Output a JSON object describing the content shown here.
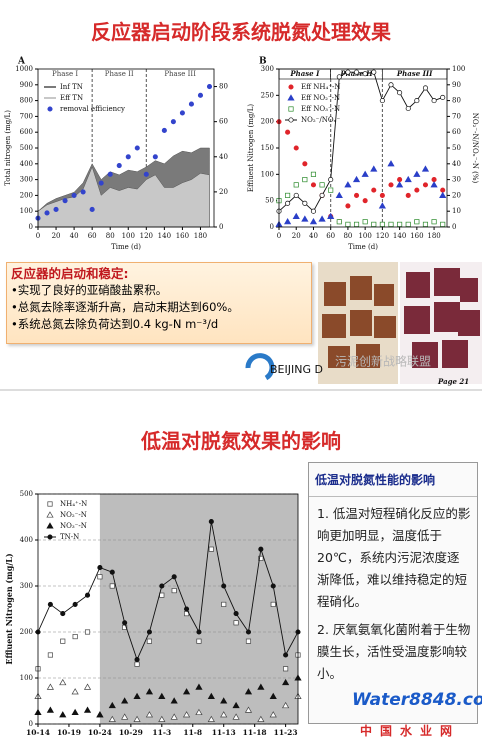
{
  "slides": [
    {
      "title": "反应器启动阶段系统脱氮处理效果",
      "box": {
        "heading": "反应器的启动和稳定:",
        "bullets": [
          "•实现了良好的亚硝酸盐累积。",
          "•总氮去除率逐渐升高，启动末期达到60%。",
          "•系统总氮去除负荷达到0.4 kg-N m⁻³/d"
        ]
      },
      "logo": "BEIJING D",
      "watermark": "污泥创新战略联盟",
      "page": "Page 21"
    },
    {
      "title": "低温对脱氮效果的影响",
      "box": {
        "heading": "低温对脱氮性能的影响",
        "items": [
          "1. 低温对短程硝化反应的影响更加明显，温度低于20℃，系统内污泥浓度逐渐降低，难以维持稳定的短程硝化。",
          "2. 厌氧氨氧化菌附着于生物膜生长，活性受温度影响较小。"
        ]
      },
      "watermark": {
        "brand": "Water8848.com",
        "sub": "中国水业网"
      }
    }
  ],
  "chart_data": [
    {
      "type": "line",
      "panel": "A",
      "xlabel": "Time (d)",
      "ylabel": "Total nitrogen (mg/L)",
      "legend": "upper left",
      "x": [
        0,
        10,
        20,
        30,
        40,
        50,
        60,
        70,
        80,
        90,
        100,
        110,
        120,
        130,
        140,
        150,
        160,
        170,
        180,
        190
      ],
      "xlim": [
        0,
        195
      ],
      "xticks": [
        0,
        20,
        40,
        60,
        80,
        100,
        120,
        140,
        160,
        180
      ],
      "ylim": [
        0,
        1000
      ],
      "yticks": [
        0,
        100,
        200,
        300,
        400,
        500,
        600,
        700,
        800,
        900,
        1000
      ],
      "y2lim": [
        0,
        90
      ],
      "y2ticks": [
        0,
        20,
        40,
        60,
        80
      ],
      "phases": [
        {
          "name": "Phase I",
          "start": 0,
          "end": 60
        },
        {
          "name": "Phase II",
          "start": 60,
          "end": 120
        },
        {
          "name": "Phase III",
          "start": 120,
          "end": 195
        }
      ],
      "series": [
        {
          "name": "Inf TN",
          "color": "#7a7a7a",
          "mark": "area",
          "values": [
            100,
            150,
            180,
            200,
            220,
            280,
            400,
            300,
            350,
            330,
            360,
            350,
            380,
            420,
            400,
            450,
            480,
            470,
            500,
            500
          ]
        },
        {
          "name": "Eff TN",
          "color": "#c8c8c8",
          "mark": "area",
          "values": [
            100,
            140,
            160,
            180,
            190,
            240,
            380,
            200,
            250,
            230,
            250,
            240,
            300,
            330,
            250,
            250,
            280,
            300,
            340,
            330
          ]
        },
        {
          "name": "removal efficiency",
          "color": "#3344cc",
          "mark": "circle",
          "axis": "y2",
          "values": [
            5,
            8,
            10,
            15,
            18,
            20,
            10,
            25,
            30,
            35,
            40,
            45,
            30,
            40,
            55,
            60,
            65,
            70,
            75,
            80
          ]
        }
      ]
    },
    {
      "type": "line",
      "panel": "B",
      "xlabel": "Time (d)",
      "ylabel": "Effluent Nitrogen (mg/L)",
      "y2label": "NO₂⁻-N/NOₓ⁻-N (%)",
      "legend": "upper left",
      "x": [
        0,
        10,
        20,
        30,
        40,
        50,
        60,
        70,
        80,
        90,
        100,
        110,
        120,
        130,
        140,
        150,
        160,
        170,
        180,
        190
      ],
      "xlim": [
        0,
        195
      ],
      "xticks": [
        0,
        20,
        40,
        60,
        80,
        100,
        120,
        140,
        160,
        180
      ],
      "ylim": [
        0,
        300
      ],
      "yticks": [
        0,
        50,
        100,
        150,
        200,
        250,
        300
      ],
      "y2lim": [
        0,
        100
      ],
      "y2ticks": [
        0,
        10,
        20,
        30,
        40,
        50,
        60,
        70,
        80,
        90,
        100
      ],
      "phases": [
        {
          "name": "Phase I",
          "start": 0,
          "end": 60
        },
        {
          "name": "Phase II",
          "start": 60,
          "end": 120
        },
        {
          "name": "Phase III",
          "start": 120,
          "end": 195
        }
      ],
      "series": [
        {
          "name": "Eff NH₄⁺-N",
          "color": "#e0242a",
          "mark": "circle",
          "values": [
            200,
            180,
            150,
            120,
            80,
            60,
            20,
            10,
            40,
            60,
            50,
            70,
            60,
            80,
            90,
            60,
            70,
            80,
            90,
            70
          ]
        },
        {
          "name": "Eff NO₂⁻-N",
          "color": "#2a3fc8",
          "mark": "triangle",
          "values": [
            5,
            10,
            20,
            15,
            10,
            15,
            20,
            60,
            80,
            90,
            100,
            110,
            40,
            120,
            80,
            90,
            100,
            110,
            80,
            60
          ]
        },
        {
          "name": "Eff NO₃⁻-N",
          "color": "#2a8a2a",
          "mark": "square-open",
          "values": [
            50,
            60,
            80,
            90,
            100,
            80,
            70,
            10,
            5,
            5,
            10,
            5,
            5,
            5,
            5,
            5,
            10,
            5,
            10,
            5
          ]
        },
        {
          "name": "NO₂⁻/NOₓ⁻",
          "color": "#111111",
          "mark": "line-circle-open",
          "axis": "y2",
          "values": [
            10,
            15,
            20,
            15,
            10,
            20,
            30,
            95,
            98,
            98,
            97,
            98,
            80,
            90,
            85,
            75,
            80,
            88,
            80,
            82
          ]
        }
      ]
    },
    {
      "type": "line",
      "ylabel": "Effluent Nitrogen (mg/L)",
      "legend": "upper left",
      "shade_from": 10,
      "x": [
        0,
        2,
        4,
        6,
        8,
        10,
        12,
        14,
        16,
        18,
        20,
        22,
        24,
        26,
        28,
        30,
        32,
        34,
        36,
        38,
        40,
        42
      ],
      "xlim": [
        0,
        42
      ],
      "xticks": [
        {
          "value": 0,
          "label": "10-14"
        },
        {
          "value": 5,
          "label": "10-19"
        },
        {
          "value": 10,
          "label": "10-24"
        },
        {
          "value": 15,
          "label": "10-29"
        },
        {
          "value": 20,
          "label": "11-3"
        },
        {
          "value": 25,
          "label": "11-8"
        },
        {
          "value": 30,
          "label": "11-13"
        },
        {
          "value": 35,
          "label": "11-18"
        },
        {
          "value": 40,
          "label": "11-23"
        }
      ],
      "ylim": [
        0,
        500
      ],
      "yticks": [
        0,
        100,
        200,
        300,
        400,
        500
      ],
      "series": [
        {
          "name": "NH₄⁺-N",
          "color": "#444444",
          "mark": "square-open",
          "values": [
            120,
            150,
            180,
            190,
            200,
            320,
            300,
            210,
            130,
            180,
            280,
            290,
            240,
            180,
            380,
            260,
            220,
            180,
            360,
            260,
            120,
            150
          ]
        },
        {
          "name": "NO₂⁻-N",
          "color": "#444444",
          "mark": "triangle-open",
          "values": [
            60,
            80,
            90,
            70,
            80,
            20,
            10,
            15,
            10,
            20,
            10,
            15,
            20,
            25,
            10,
            20,
            15,
            30,
            10,
            20,
            40,
            60
          ]
        },
        {
          "name": "NO₃⁻-N",
          "color": "#111111",
          "mark": "triangle",
          "values": [
            25,
            30,
            20,
            25,
            30,
            20,
            40,
            50,
            60,
            70,
            60,
            50,
            70,
            80,
            60,
            50,
            40,
            70,
            80,
            60,
            90,
            100
          ]
        },
        {
          "name": "TN-N",
          "color": "#111111",
          "mark": "line-circle",
          "values": [
            200,
            260,
            240,
            260,
            280,
            340,
            330,
            220,
            140,
            200,
            300,
            320,
            250,
            200,
            440,
            300,
            240,
            200,
            380,
            300,
            150,
            200
          ]
        }
      ]
    }
  ]
}
